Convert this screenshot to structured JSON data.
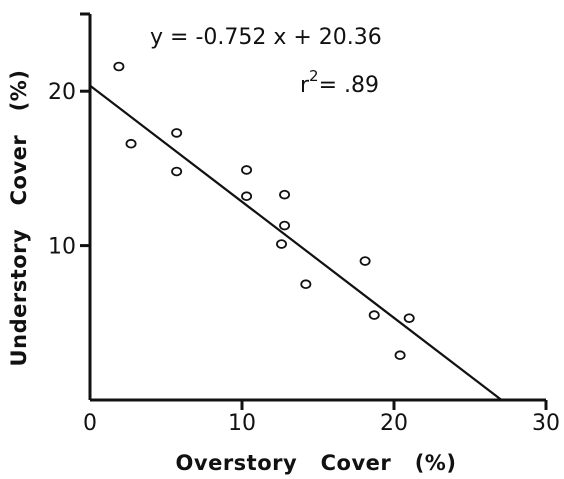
{
  "chart_data": {
    "type": "scatter",
    "xlabel": "Overstory   Cover   (%)",
    "ylabel": "Understory   Cover   (%)",
    "xlim": [
      0,
      30
    ],
    "ylim": [
      0,
      25
    ],
    "xticks": [
      0,
      10,
      20,
      30
    ],
    "xtick_labels": [
      "0",
      "10",
      "20",
      "30"
    ],
    "yticks": [
      10,
      20
    ],
    "ytick_labels": [
      "10",
      "20"
    ],
    "points": [
      {
        "x": 1.9,
        "y": 21.6
      },
      {
        "x": 2.7,
        "y": 16.6
      },
      {
        "x": 5.7,
        "y": 17.3
      },
      {
        "x": 5.7,
        "y": 14.8
      },
      {
        "x": 10.3,
        "y": 14.9
      },
      {
        "x": 10.3,
        "y": 13.2
      },
      {
        "x": 12.8,
        "y": 13.3
      },
      {
        "x": 12.8,
        "y": 11.3
      },
      {
        "x": 12.6,
        "y": 10.1
      },
      {
        "x": 14.2,
        "y": 7.5
      },
      {
        "x": 18.1,
        "y": 9.0
      },
      {
        "x": 18.7,
        "y": 5.5
      },
      {
        "x": 20.4,
        "y": 2.9
      },
      {
        "x": 21.0,
        "y": 5.3
      }
    ],
    "regression": {
      "slope": -0.752,
      "intercept": 20.36,
      "equation": "y = -0.752 x + 20.36",
      "r2_label": "r",
      "r2_exp": "2",
      "r2_value": "= .89"
    },
    "grid": false
  }
}
